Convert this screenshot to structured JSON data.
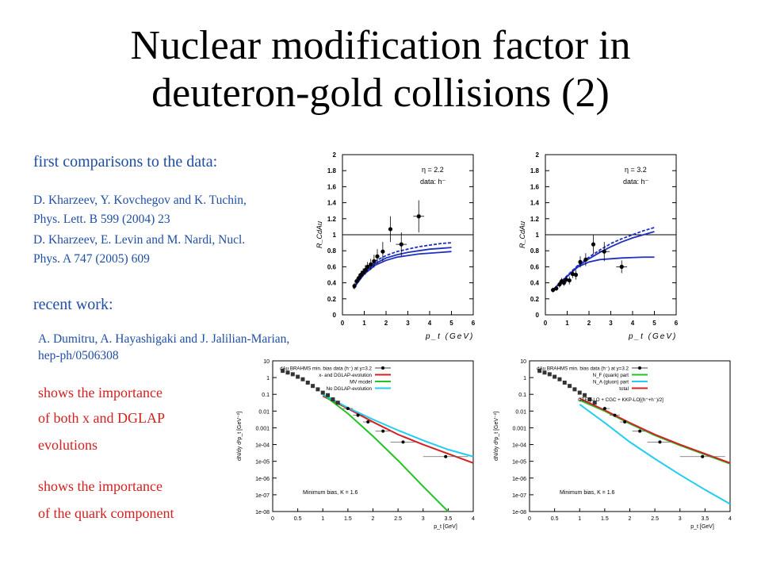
{
  "slide": {
    "title_line1": "Nuclear modification factor in",
    "title_line2": "deuteron-gold collisions (2)",
    "first_heading": "first comparisons to the data:",
    "ref1_line1": "D. Kharzeev, Y. Kovchegov and K. Tuchin,",
    "ref1_line2": "Phys. Lett. B 599 (2004) 23",
    "ref2_line1": "D. Kharzeev, E. Levin and M. Nardi, Nucl.",
    "ref2_line2": "Phys. A 747 (2005) 609",
    "recent_heading": "recent work:",
    "ref3_line1": "A. Dumitru, A. Hayashigaki and J. Jalilian-Marian,",
    "ref3_line2": "hep-ph/0506308",
    "note1_line1": "shows the importance",
    "note1_line2": "of both x and DGLAP",
    "note1_line3": "evolutions",
    "note2_line1": "shows the importance",
    "note2_line2": "of the quark component"
  },
  "colors": {
    "heading_blue": "#1f4ea3",
    "curve_blue": "#1f2fbf",
    "red": "#d42020",
    "green": "#22c422",
    "cyan": "#22ccf2"
  },
  "chart_data": [
    {
      "type": "scatter",
      "panel": "top-left",
      "annotation_line1": "η = 2.2",
      "annotation_line2": "data: h⁻",
      "ylabel": "R_CdAu",
      "xlabel": "p_t (GeV)",
      "xlim": [
        0,
        6
      ],
      "ylim": [
        0,
        2
      ],
      "xticks": [
        "0",
        "1",
        "2",
        "3",
        "4",
        "5",
        "6"
      ],
      "yticks": [
        "0",
        "0.2",
        "0.4",
        "0.6",
        "0.8",
        "1",
        "1.2",
        "1.4",
        "1.6",
        "1.8",
        "2"
      ],
      "reference_line": 1,
      "points": [
        [
          0.55,
          0.36
        ],
        [
          0.65,
          0.42
        ],
        [
          0.75,
          0.46
        ],
        [
          0.85,
          0.5
        ],
        [
          0.95,
          0.53
        ],
        [
          1.05,
          0.56
        ],
        [
          1.15,
          0.6
        ],
        [
          1.3,
          0.63
        ],
        [
          1.45,
          0.67
        ],
        [
          1.6,
          0.73
        ],
        [
          1.85,
          0.79
        ],
        [
          2.2,
          1.07
        ],
        [
          2.7,
          0.88
        ],
        [
          3.5,
          1.23
        ]
      ],
      "point_errors": [
        0.04,
        0.04,
        0.05,
        0.05,
        0.05,
        0.06,
        0.06,
        0.07,
        0.08,
        0.09,
        0.12,
        0.16,
        0.15,
        0.2
      ],
      "curves": [
        {
          "style": "dashed",
          "x": [
            0.5,
            1,
            1.5,
            2,
            2.5,
            3,
            3.5,
            4,
            4.5,
            5
          ],
          "y": [
            0.35,
            0.55,
            0.67,
            0.74,
            0.79,
            0.82,
            0.85,
            0.87,
            0.89,
            0.9
          ]
        },
        {
          "style": "solid",
          "x": [
            0.5,
            1,
            1.5,
            2,
            2.5,
            3,
            3.5,
            4,
            4.5,
            5
          ],
          "y": [
            0.34,
            0.53,
            0.64,
            0.71,
            0.75,
            0.78,
            0.8,
            0.82,
            0.83,
            0.84
          ]
        },
        {
          "style": "solid",
          "x": [
            0.5,
            1,
            1.5,
            2,
            2.5,
            3,
            3.5,
            4,
            4.5,
            5
          ],
          "y": [
            0.33,
            0.51,
            0.62,
            0.68,
            0.72,
            0.74,
            0.76,
            0.77,
            0.78,
            0.79
          ]
        }
      ]
    },
    {
      "type": "scatter",
      "panel": "top-right",
      "annotation_line1": "η = 3.2",
      "annotation_line2": "data: h⁻",
      "ylabel": "R_CdAu",
      "xlabel": "p_t (GeV)",
      "xlim": [
        0,
        6
      ],
      "ylim": [
        0,
        2
      ],
      "xticks": [
        "0",
        "1",
        "2",
        "3",
        "4",
        "5",
        "6"
      ],
      "yticks": [
        "0",
        "0.2",
        "0.4",
        "0.6",
        "0.8",
        "1",
        "1.2",
        "1.4",
        "1.6",
        "1.8",
        "2"
      ],
      "reference_line": 1,
      "points": [
        [
          0.35,
          0.31
        ],
        [
          0.5,
          0.33
        ],
        [
          0.65,
          0.38
        ],
        [
          0.75,
          0.42
        ],
        [
          0.85,
          0.4
        ],
        [
          0.95,
          0.44
        ],
        [
          1.1,
          0.43
        ],
        [
          1.25,
          0.51
        ],
        [
          1.4,
          0.5
        ],
        [
          1.6,
          0.66
        ],
        [
          1.85,
          0.69
        ],
        [
          2.2,
          0.88
        ],
        [
          2.7,
          0.79
        ],
        [
          3.5,
          0.6
        ]
      ],
      "point_errors": [
        0.03,
        0.03,
        0.04,
        0.04,
        0.04,
        0.04,
        0.05,
        0.05,
        0.06,
        0.07,
        0.08,
        0.12,
        0.12,
        0.08
      ],
      "curves": [
        {
          "style": "dashed",
          "x": [
            0.3,
            1,
            1.5,
            2,
            2.5,
            3,
            3.5,
            4,
            4.5,
            5
          ],
          "y": [
            0.3,
            0.49,
            0.62,
            0.72,
            0.81,
            0.89,
            0.95,
            1.0,
            1.05,
            1.09
          ]
        },
        {
          "style": "solid",
          "x": [
            0.3,
            1,
            1.5,
            2,
            2.5,
            3,
            3.5,
            4,
            4.5,
            5
          ],
          "y": [
            0.3,
            0.48,
            0.61,
            0.7,
            0.78,
            0.85,
            0.91,
            0.96,
            1.0,
            1.04
          ]
        },
        {
          "style": "solid",
          "x": [
            0.3,
            1,
            1.5,
            2,
            2.5,
            3,
            3.5,
            4,
            4.5,
            5
          ],
          "y": [
            0.3,
            0.48,
            0.6,
            0.66,
            0.69,
            0.7,
            0.71,
            0.715,
            0.72,
            0.72
          ]
        }
      ]
    },
    {
      "type": "line",
      "panel": "bottom-left",
      "ylabel": "dN/dy d²p_t [GeV⁻²]",
      "xlabel": "p_t [GeV]",
      "annotation": "Minimum bias,  K = 1.6",
      "xlim": [
        0,
        4
      ],
      "ylog": true,
      "ylim_exp": [
        -8,
        1
      ],
      "xticks": [
        "0",
        "0.5",
        "1",
        "1.5",
        "2",
        "2.5",
        "3",
        "3.5",
        "4"
      ],
      "yticks": [
        "10",
        "1",
        "0.1",
        "0.01",
        "0.001",
        "1e-04",
        "1e-05",
        "1e-06",
        "1e-07",
        "1e-08"
      ],
      "legend": [
        "dAu BRAHMS min. bias data (h⁻) at y=3.2",
        "x- and DGLAP-evolution",
        "MV model",
        "No DGLAP-evolution"
      ],
      "points_log10": [
        [
          0.2,
          0.4
        ],
        [
          0.3,
          0.3
        ],
        [
          0.4,
          0.2
        ],
        [
          0.5,
          0.05
        ],
        [
          0.6,
          -0.1
        ],
        [
          0.7,
          -0.3
        ],
        [
          0.8,
          -0.5
        ],
        [
          0.9,
          -0.7
        ],
        [
          1.0,
          -0.9
        ],
        [
          1.1,
          -1.05
        ],
        [
          1.2,
          -1.3
        ],
        [
          1.3,
          -1.5
        ],
        [
          1.5,
          -1.85
        ],
        [
          1.7,
          -2.25
        ],
        [
          1.9,
          -2.65
        ],
        [
          2.2,
          -3.2
        ],
        [
          2.6,
          -3.85
        ],
        [
          3.45,
          -4.72
        ]
      ],
      "x_errors": [
        0,
        0,
        0,
        0,
        0,
        0,
        0,
        0,
        0,
        0,
        0,
        0,
        0.1,
        0.1,
        0.1,
        0.15,
        0.25,
        0.45
      ],
      "series": [
        {
          "name": "x- and DGLAP-evolution",
          "color": "red",
          "x": [
            1,
            1.5,
            2,
            2.5,
            3,
            3.5,
            4
          ],
          "log10y": [
            -1.1,
            -1.85,
            -2.65,
            -3.4,
            -4.0,
            -4.55,
            -5.1
          ]
        },
        {
          "name": "MV model",
          "color": "green",
          "x": [
            1,
            1.5,
            2,
            2.5,
            3,
            3.5
          ],
          "log10y": [
            -1.0,
            -2.15,
            -3.5,
            -4.95,
            -6.5,
            -8.0
          ]
        },
        {
          "name": "No DGLAP-evolution",
          "color": "cyan",
          "x": [
            1,
            1.5,
            2,
            2.5,
            3,
            3.5,
            4
          ],
          "log10y": [
            -1.0,
            -1.8,
            -2.5,
            -3.15,
            -3.75,
            -4.3,
            -4.72
          ]
        }
      ]
    },
    {
      "type": "line",
      "panel": "bottom-right",
      "ylabel": "dN/dy d²p_t [GeV⁻²]",
      "xlabel": "p_t [GeV]",
      "annotation": "Minimum bias,  K = 1.6",
      "xlim": [
        0,
        4
      ],
      "ylog": true,
      "ylim_exp": [
        -8,
        1
      ],
      "xticks": [
        "0",
        "0.5",
        "1",
        "1.5",
        "2",
        "2.5",
        "3",
        "3.5",
        "4"
      ],
      "yticks": [
        "10",
        "1",
        "0.1",
        "0.01",
        "0.001",
        "1e-04",
        "1e-05",
        "1e-06",
        "1e-07",
        "1e-08"
      ],
      "legend": [
        "dAu BRAHMS min. bias data (h⁻) at y=3.2",
        "N_F (quark) part",
        "N_A (gluon) part",
        "total"
      ],
      "legend_note": "CTEQ-LO + CGC + KKP-LO[(h⁺+h⁻)/2]",
      "points_log10": [
        [
          0.2,
          0.4
        ],
        [
          0.3,
          0.3
        ],
        [
          0.4,
          0.2
        ],
        [
          0.5,
          0.05
        ],
        [
          0.6,
          -0.1
        ],
        [
          0.7,
          -0.3
        ],
        [
          0.8,
          -0.5
        ],
        [
          0.9,
          -0.7
        ],
        [
          1.0,
          -0.9
        ],
        [
          1.1,
          -1.05
        ],
        [
          1.2,
          -1.3
        ],
        [
          1.3,
          -1.5
        ],
        [
          1.5,
          -1.85
        ],
        [
          1.7,
          -2.25
        ],
        [
          1.9,
          -2.65
        ],
        [
          2.2,
          -3.2
        ],
        [
          2.6,
          -3.85
        ],
        [
          3.45,
          -4.72
        ]
      ],
      "x_errors": [
        0,
        0,
        0,
        0,
        0,
        0,
        0,
        0,
        0,
        0,
        0,
        0,
        0.1,
        0.1,
        0.1,
        0.15,
        0.25,
        0.45
      ],
      "series": [
        {
          "name": "N_F (quark) part",
          "color": "green",
          "x": [
            1,
            1.5,
            2,
            2.5,
            3,
            3.5,
            4
          ],
          "log10y": [
            -1.35,
            -2.0,
            -2.75,
            -3.45,
            -4.05,
            -4.6,
            -5.15
          ]
        },
        {
          "name": "N_A (gluon) part",
          "color": "cyan",
          "x": [
            1,
            1.5,
            2,
            2.5,
            3,
            3.5,
            4
          ],
          "log10y": [
            -1.6,
            -2.7,
            -3.85,
            -4.85,
            -5.8,
            -6.7,
            -7.55
          ]
        },
        {
          "name": "total",
          "color": "red",
          "x": [
            1,
            1.5,
            2,
            2.5,
            3,
            3.5,
            4
          ],
          "log10y": [
            -1.25,
            -1.95,
            -2.7,
            -3.4,
            -4.0,
            -4.55,
            -5.1
          ]
        }
      ]
    }
  ]
}
